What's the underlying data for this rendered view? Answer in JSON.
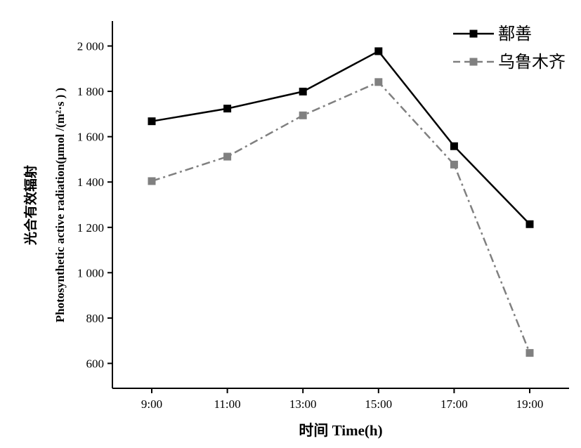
{
  "chart_data": {
    "type": "line",
    "categories": [
      "9:00",
      "11:00",
      "13:00",
      "15:00",
      "17:00",
      "19:00"
    ],
    "series": [
      {
        "name": "鄯善",
        "values": [
          1668,
          1724,
          1799,
          1977,
          1558,
          1214
        ],
        "color": "#000000",
        "line": "solid"
      },
      {
        "name": "乌鲁木齐",
        "values": [
          1404,
          1512,
          1694,
          1841,
          1477,
          646
        ],
        "color": "#808080",
        "line": "dash-dot"
      }
    ],
    "xlabel": "时间  Time(h)",
    "ylabel_cn": "光合有效辐射",
    "ylabel_en": "Photosynthetic active radiation(μmol /(m²·s ) )",
    "yticks": [
      "600",
      "800",
      "1 000",
      "1 200",
      "1 400",
      "1 600",
      "1 800",
      "2 000"
    ],
    "ytick_values": [
      600,
      800,
      1000,
      1200,
      1400,
      1600,
      1800,
      2000
    ],
    "ylim": [
      490,
      2110
    ],
    "legend": "top-right",
    "grid": false
  }
}
